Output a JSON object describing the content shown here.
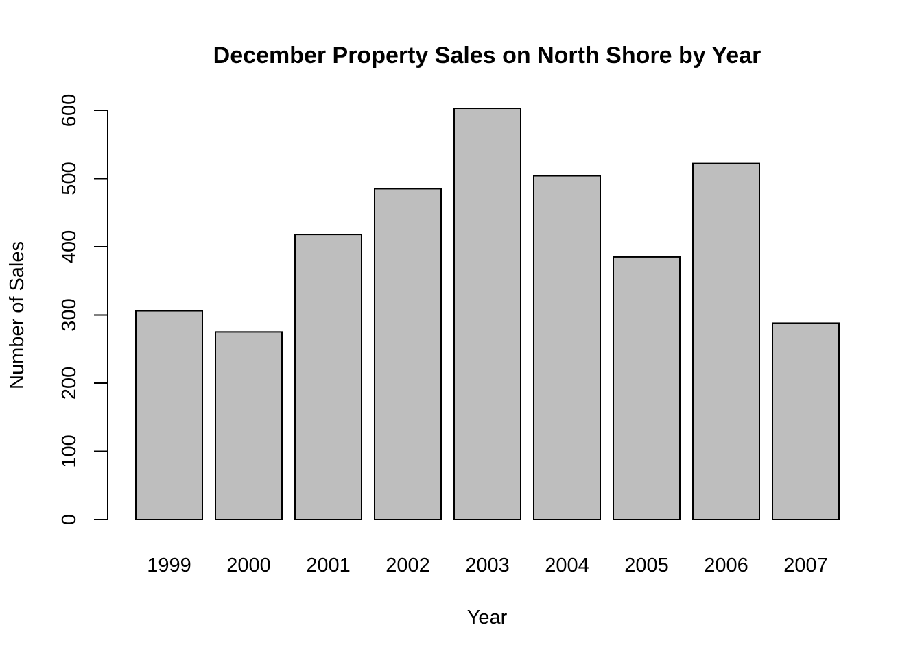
{
  "chart_data": {
    "type": "bar",
    "title": "December Property Sales on North Shore by Year",
    "xlabel": "Year",
    "ylabel": "Number of Sales",
    "categories": [
      "1999",
      "2000",
      "2001",
      "2002",
      "2003",
      "2004",
      "2005",
      "2006",
      "2007"
    ],
    "values": [
      306,
      275,
      418,
      485,
      603,
      504,
      385,
      522,
      288
    ],
    "ylim": [
      0,
      600
    ],
    "yticks": [
      0,
      100,
      200,
      300,
      400,
      500,
      600
    ],
    "grid": false,
    "bar_color": "#bebebe",
    "border_color": "#000000"
  }
}
